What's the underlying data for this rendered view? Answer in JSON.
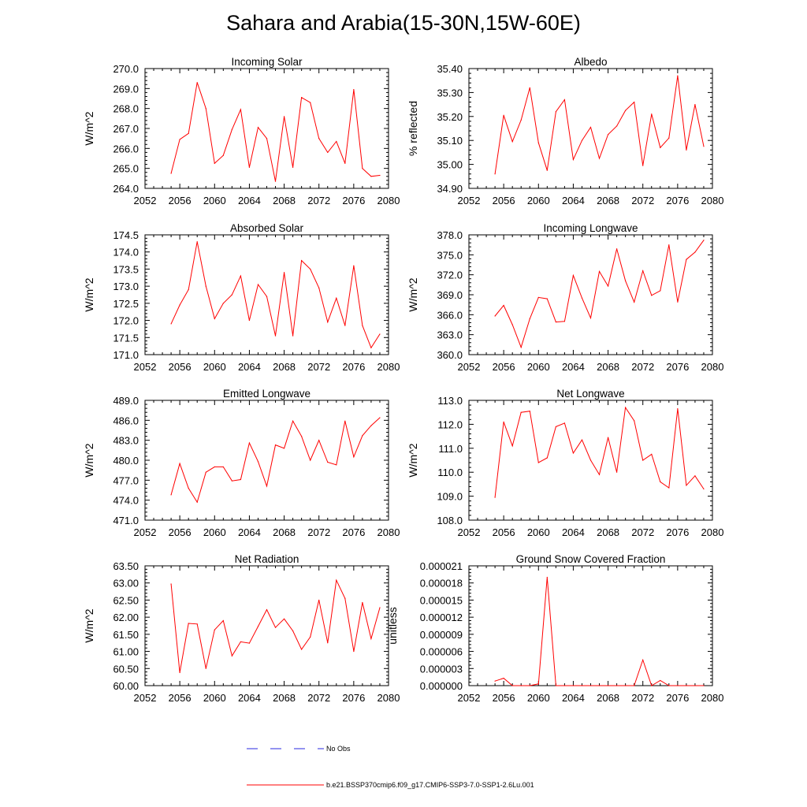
{
  "title": "Sahara and Arabia(15-30N,15W-60E)",
  "colors": {
    "model_line": "#ff0000",
    "obs_line": "#2a2ae0",
    "axis": "#000000"
  },
  "legend": {
    "items": [
      {
        "label": "No Obs",
        "style": "dashed",
        "color": "#2a2ae0"
      },
      {
        "label": "b.e21.BSSP370cmip6.f09_g17.CMIP6-SSP3-7.0-SSP1-2.6Lu.001",
        "style": "solid",
        "color": "#ff0000"
      }
    ]
  },
  "chart_data": [
    {
      "type": "line",
      "title": "Incoming Solar",
      "ylabel": "W/m^2",
      "xlim": [
        2052,
        2080
      ],
      "xticks": [
        "2052",
        "2056",
        "2060",
        "2064",
        "2068",
        "2072",
        "2076",
        "2080"
      ],
      "ylim": [
        264.0,
        270.0
      ],
      "yticks": [
        "264.0",
        "265.0",
        "266.0",
        "267.0",
        "268.0",
        "269.0",
        "270.0"
      ],
      "x": [
        2055,
        2056,
        2057,
        2058,
        2059,
        2060,
        2061,
        2062,
        2063,
        2064,
        2065,
        2066,
        2067,
        2068,
        2069,
        2070,
        2071,
        2072,
        2073,
        2074,
        2075,
        2076,
        2077,
        2078,
        2079
      ],
      "series": [
        {
          "name": "b.e21.BSSP370cmip6.f09_g17.CMIP6-SSP3-7.0-SSP1-2.6Lu.001",
          "values": [
            264.75,
            266.45,
            266.75,
            269.3,
            268.0,
            265.25,
            265.65,
            266.95,
            267.95,
            265.05,
            267.05,
            266.5,
            264.35,
            267.6,
            265.05,
            268.55,
            268.3,
            266.5,
            265.8,
            266.35,
            265.25,
            268.95,
            265.0,
            264.6,
            264.65
          ]
        }
      ]
    },
    {
      "type": "line",
      "title": "Albedo",
      "ylabel": "% reflected",
      "xlim": [
        2052,
        2080
      ],
      "xticks": [
        "2052",
        "2056",
        "2060",
        "2064",
        "2068",
        "2072",
        "2076",
        "2080"
      ],
      "ylim": [
        34.9,
        35.4
      ],
      "yticks": [
        "34.90",
        "35.00",
        "35.10",
        "35.20",
        "35.30",
        "35.40"
      ],
      "x": [
        2055,
        2056,
        2057,
        2058,
        2059,
        2060,
        2061,
        2062,
        2063,
        2064,
        2065,
        2066,
        2067,
        2068,
        2069,
        2070,
        2071,
        2072,
        2073,
        2074,
        2075,
        2076,
        2077,
        2078,
        2079
      ],
      "series": [
        {
          "name": "b.e21.BSSP370cmip6.f09_g17.CMIP6-SSP3-7.0-SSP1-2.6Lu.001",
          "values": [
            34.96,
            35.205,
            35.095,
            35.185,
            35.32,
            35.09,
            34.975,
            35.22,
            35.27,
            35.02,
            35.1,
            35.155,
            35.025,
            35.125,
            35.16,
            35.225,
            35.26,
            34.995,
            35.21,
            35.07,
            35.11,
            35.37,
            35.06,
            35.25,
            35.075
          ]
        }
      ]
    },
    {
      "type": "line",
      "title": "Absorbed Solar",
      "ylabel": "W/m^2",
      "xlim": [
        2052,
        2080
      ],
      "xticks": [
        "2052",
        "2056",
        "2060",
        "2064",
        "2068",
        "2072",
        "2076",
        "2080"
      ],
      "ylim": [
        171.0,
        174.5
      ],
      "yticks": [
        "171.0",
        "171.5",
        "172.0",
        "172.5",
        "173.0",
        "173.5",
        "174.0",
        "174.5"
      ],
      "x": [
        2055,
        2056,
        2057,
        2058,
        2059,
        2060,
        2061,
        2062,
        2063,
        2064,
        2065,
        2066,
        2067,
        2068,
        2069,
        2070,
        2071,
        2072,
        2073,
        2074,
        2075,
        2076,
        2077,
        2078,
        2079
      ],
      "series": [
        {
          "name": "b.e21.BSSP370cmip6.f09_g17.CMIP6-SSP3-7.0-SSP1-2.6Lu.001",
          "values": [
            171.9,
            172.45,
            172.9,
            174.3,
            173.0,
            172.05,
            172.5,
            172.75,
            173.3,
            172.0,
            173.05,
            172.7,
            171.55,
            173.4,
            171.55,
            173.75,
            173.5,
            172.95,
            171.95,
            172.65,
            171.85,
            173.6,
            171.85,
            171.2,
            171.6
          ]
        }
      ]
    },
    {
      "type": "line",
      "title": "Incoming Longwave",
      "ylabel": "W/m^2",
      "xlim": [
        2052,
        2080
      ],
      "xticks": [
        "2052",
        "2056",
        "2060",
        "2064",
        "2068",
        "2072",
        "2076",
        "2080"
      ],
      "ylim": [
        360.0,
        378.0
      ],
      "yticks": [
        "360.0",
        "363.0",
        "366.0",
        "369.0",
        "372.0",
        "375.0",
        "378.0"
      ],
      "x": [
        2055,
        2056,
        2057,
        2058,
        2059,
        2060,
        2061,
        2062,
        2063,
        2064,
        2065,
        2066,
        2067,
        2068,
        2069,
        2070,
        2071,
        2072,
        2073,
        2074,
        2075,
        2076,
        2077,
        2078,
        2079
      ],
      "series": [
        {
          "name": "b.e21.BSSP370cmip6.f09_g17.CMIP6-SSP3-7.0-SSP1-2.6Lu.001",
          "values": [
            365.8,
            367.4,
            364.5,
            361.1,
            365.4,
            368.6,
            368.4,
            364.9,
            365.0,
            371.9,
            368.5,
            365.5,
            372.5,
            370.3,
            375.9,
            371.1,
            367.9,
            372.6,
            368.9,
            369.6,
            376.5,
            367.9,
            374.3,
            375.4,
            377.2
          ]
        }
      ]
    },
    {
      "type": "line",
      "title": "Emitted Longwave",
      "ylabel": "W/m^2",
      "xlim": [
        2052,
        2080
      ],
      "xticks": [
        "2052",
        "2056",
        "2060",
        "2064",
        "2068",
        "2072",
        "2076",
        "2080"
      ],
      "ylim": [
        471.0,
        489.0
      ],
      "yticks": [
        "471.0",
        "474.0",
        "477.0",
        "480.0",
        "483.0",
        "486.0",
        "489.0"
      ],
      "x": [
        2055,
        2056,
        2057,
        2058,
        2059,
        2060,
        2061,
        2062,
        2063,
        2064,
        2065,
        2066,
        2067,
        2068,
        2069,
        2070,
        2071,
        2072,
        2073,
        2074,
        2075,
        2076,
        2077,
        2078,
        2079
      ],
      "series": [
        {
          "name": "b.e21.BSSP370cmip6.f09_g17.CMIP6-SSP3-7.0-SSP1-2.6Lu.001",
          "values": [
            474.8,
            479.5,
            475.8,
            473.7,
            478.2,
            479.0,
            479.0,
            476.9,
            477.1,
            482.6,
            479.8,
            476.1,
            482.3,
            481.8,
            485.9,
            483.6,
            480.0,
            483.0,
            479.7,
            479.3,
            485.9,
            480.5,
            483.7,
            485.2,
            486.4
          ]
        }
      ]
    },
    {
      "type": "line",
      "title": "Net Longwave",
      "ylabel": "W/m^2",
      "xlim": [
        2052,
        2080
      ],
      "xticks": [
        "2052",
        "2056",
        "2060",
        "2064",
        "2068",
        "2072",
        "2076",
        "2080"
      ],
      "ylim": [
        108.0,
        113.0
      ],
      "yticks": [
        "108.0",
        "109.0",
        "110.0",
        "111.0",
        "112.0",
        "113.0"
      ],
      "x": [
        2055,
        2056,
        2057,
        2058,
        2059,
        2060,
        2061,
        2062,
        2063,
        2064,
        2065,
        2066,
        2067,
        2068,
        2069,
        2070,
        2071,
        2072,
        2073,
        2074,
        2075,
        2076,
        2077,
        2078,
        2079
      ],
      "series": [
        {
          "name": "b.e21.BSSP370cmip6.f09_g17.CMIP6-SSP3-7.0-SSP1-2.6Lu.001",
          "values": [
            108.95,
            112.1,
            111.1,
            112.5,
            112.55,
            110.4,
            110.6,
            111.9,
            112.05,
            110.8,
            111.35,
            110.5,
            109.9,
            111.45,
            110.0,
            112.7,
            112.15,
            110.5,
            110.75,
            109.6,
            109.35,
            112.65,
            109.45,
            109.85,
            109.3
          ]
        }
      ]
    },
    {
      "type": "line",
      "title": "Net Radiation",
      "ylabel": "W/m^2",
      "xlim": [
        2052,
        2080
      ],
      "xticks": [
        "2052",
        "2056",
        "2060",
        "2064",
        "2068",
        "2072",
        "2076",
        "2080"
      ],
      "ylim": [
        60.0,
        63.5
      ],
      "yticks": [
        "60.00",
        "60.50",
        "61.00",
        "61.50",
        "62.00",
        "62.50",
        "63.00",
        "63.50"
      ],
      "x": [
        2055,
        2056,
        2057,
        2058,
        2059,
        2060,
        2061,
        2062,
        2063,
        2064,
        2065,
        2066,
        2067,
        2068,
        2069,
        2070,
        2071,
        2072,
        2073,
        2074,
        2075,
        2076,
        2077,
        2078,
        2079
      ],
      "series": [
        {
          "name": "b.e21.BSSP370cmip6.f09_g17.CMIP6-SSP3-7.0-SSP1-2.6Lu.001",
          "values": [
            62.97,
            60.38,
            61.82,
            61.8,
            60.5,
            61.63,
            61.9,
            60.87,
            61.28,
            61.24,
            61.73,
            62.22,
            61.7,
            61.95,
            61.6,
            61.06,
            61.42,
            62.5,
            61.25,
            63.08,
            62.55,
            61.0,
            62.43,
            61.37,
            62.28
          ]
        }
      ]
    },
    {
      "type": "line",
      "title": "Ground Snow Covered Fraction",
      "ylabel": "unitless",
      "xlim": [
        2052,
        2080
      ],
      "xticks": [
        "2052",
        "2056",
        "2060",
        "2064",
        "2068",
        "2072",
        "2076",
        "2080"
      ],
      "ylim": [
        0,
        2.1e-05
      ],
      "yticks": [
        "0.000000",
        "0.000003",
        "0.000006",
        "0.000009",
        "0.000012",
        "0.000015",
        "0.000018",
        "0.000021"
      ],
      "x": [
        2055,
        2056,
        2057,
        2058,
        2059,
        2060,
        2061,
        2062,
        2063,
        2064,
        2065,
        2066,
        2067,
        2068,
        2069,
        2070,
        2071,
        2072,
        2073,
        2074,
        2075,
        2076,
        2077,
        2078,
        2079
      ],
      "series": [
        {
          "name": "b.e21.BSSP370cmip6.f09_g17.CMIP6-SSP3-7.0-SSP1-2.6Lu.001",
          "values": [
            8e-07,
            1.3e-06,
            0,
            0,
            0,
            3e-07,
            1.9e-05,
            0,
            0,
            0,
            0,
            0,
            0,
            0,
            0,
            0,
            0,
            4.5e-06,
            0,
            9e-07,
            0,
            0,
            0,
            0,
            0
          ]
        }
      ]
    }
  ]
}
